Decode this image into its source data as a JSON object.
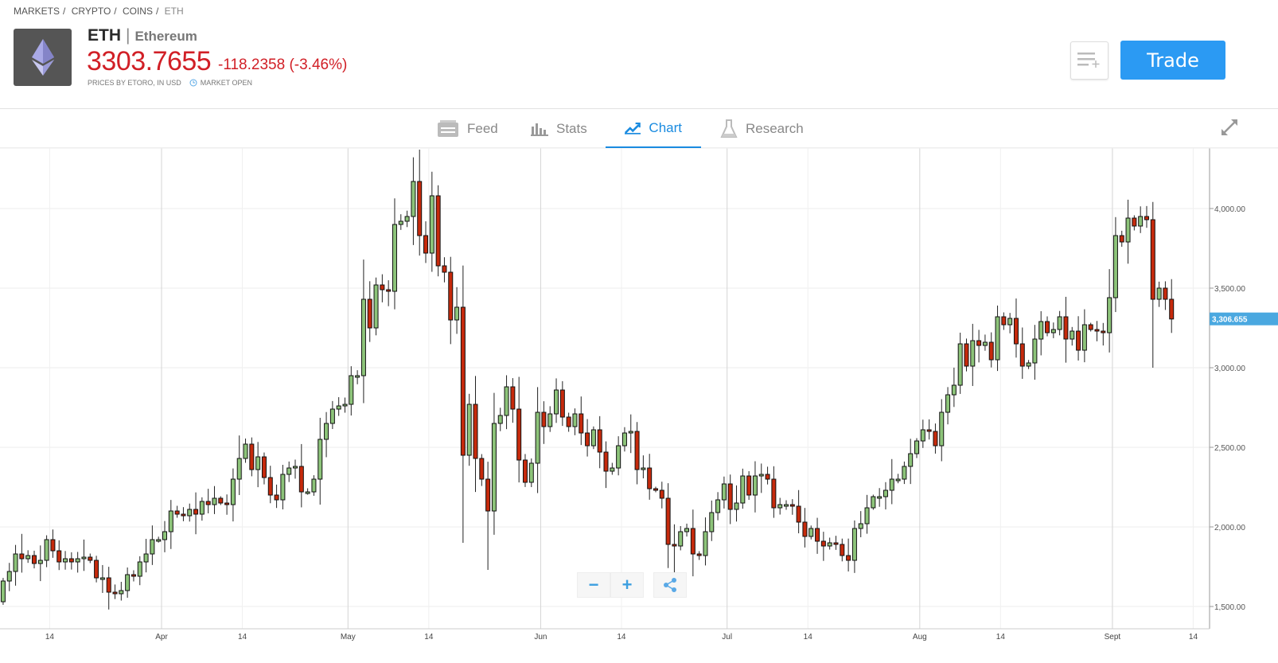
{
  "breadcrumb": [
    "MARKETS",
    "CRYPTO",
    "COINS",
    "ETH"
  ],
  "header": {
    "symbol": "ETH",
    "separator": "|",
    "name": "Ethereum",
    "price": "3303.7655",
    "change": "-118.2358 (-3.46%)",
    "source": "PRICES BY ETORO, IN USD",
    "market_status": "MARKET OPEN",
    "trade_label": "Trade"
  },
  "tabs": [
    {
      "label": "Feed",
      "icon": "feed-icon"
    },
    {
      "label": "Stats",
      "icon": "stats-icon"
    },
    {
      "label": "Chart",
      "icon": "chart-icon",
      "active": true
    },
    {
      "label": "Research",
      "icon": "research-icon"
    }
  ],
  "colors": {
    "up": "#8dc47a",
    "down": "#c62a0c",
    "accent": "#2b9af3",
    "price_down": "#d11f26"
  },
  "controls": {
    "zoom_out": "−",
    "zoom_in": "+"
  },
  "chart_data": {
    "type": "candlestick",
    "start_date": "Mar 6",
    "first_open": 1530,
    "closes": [
      1660,
      1720,
      1830,
      1800,
      1820,
      1770,
      1790,
      1920,
      1850,
      1780,
      1800,
      1780,
      1800,
      1810,
      1790,
      1680,
      1680,
      1590,
      1580,
      1600,
      1700,
      1690,
      1780,
      1830,
      1920,
      1920,
      1970,
      2100,
      2080,
      2070,
      2110,
      2080,
      2160,
      2140,
      2180,
      2150,
      2140,
      2300,
      2430,
      2520,
      2360,
      2440,
      2310,
      2200,
      2170,
      2330,
      2370,
      2380,
      2220,
      2220,
      2300,
      2550,
      2650,
      2740,
      2760,
      2770,
      2950,
      2950,
      3430,
      3250,
      3520,
      3490,
      3480,
      3900,
      3920,
      3950,
      4170,
      3830,
      3720,
      4080,
      3640,
      3600,
      3300,
      3380,
      2450,
      2770,
      2430,
      2300,
      2100,
      2650,
      2700,
      2880,
      2740,
      2420,
      2280,
      2400,
      2720,
      2630,
      2710,
      2860,
      2690,
      2630,
      2710,
      2590,
      2510,
      2610,
      2470,
      2350,
      2370,
      2510,
      2590,
      2600,
      2360,
      2370,
      2240,
      2230,
      2180,
      1890,
      1880,
      1970,
      1990,
      1830,
      1820,
      1970,
      2090,
      2170,
      2270,
      2110,
      2150,
      2320,
      2200,
      2320,
      2330,
      2300,
      2120,
      2140,
      2140,
      2130,
      2030,
      1940,
      1990,
      1910,
      1880,
      1900,
      1890,
      1820,
      1790,
      1990,
      2020,
      2120,
      2190,
      2190,
      2230,
      2300,
      2300,
      2380,
      2460,
      2540,
      2610,
      2600,
      2510,
      2720,
      2830,
      2890,
      3150,
      3010,
      3170,
      3140,
      3160,
      3050,
      3320,
      3270,
      3310,
      3150,
      3010,
      3030,
      3180,
      3290,
      3220,
      3240,
      3320,
      3180,
      3230,
      3110,
      3270,
      3240,
      3230,
      3220,
      3440,
      3830,
      3790,
      3940,
      3890,
      3950,
      3930,
      3430,
      3500,
      3430,
      3306
    ],
    "wick_extremes": {
      "high": {
        "67": 4370
      },
      "low": {
        "74": 1900,
        "78": 1730,
        "108": 1700,
        "136": 1720,
        "185": 3000
      }
    },
    "x_ticks": [
      "14",
      "Apr",
      "14",
      "May",
      "14",
      "Jun",
      "14",
      "Jul",
      "14",
      "Aug",
      "14",
      "Sept",
      "14"
    ],
    "y_ticks": [
      "1,500.00",
      "2,000.00",
      "2,500.00",
      "3,000.00",
      "3,500.00",
      "4,000.00"
    ],
    "y_range": [
      1400,
      4450
    ],
    "last_price_label": "3,306.655"
  }
}
